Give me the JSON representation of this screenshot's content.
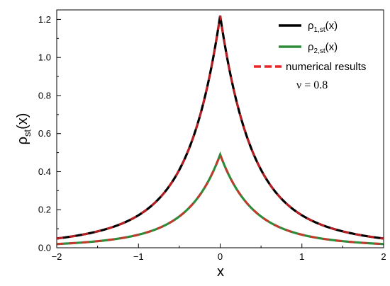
{
  "chart_data": {
    "type": "line",
    "xlabel": "x",
    "ylabel": "ρst(x)",
    "xlim": [
      -2,
      2
    ],
    "ylim": [
      0,
      1.25
    ],
    "x_ticks": [
      -2,
      -1,
      0,
      1,
      2
    ],
    "y_ticks": [
      0.0,
      0.2,
      0.4,
      0.6,
      0.8,
      1.0,
      1.2
    ],
    "x_tick_labels": [
      "−2",
      "−1",
      "0",
      "1",
      "2"
    ],
    "y_tick_labels": [
      "0.0",
      "0.2",
      "0.4",
      "0.6",
      "0.8",
      "1.0",
      "1.2"
    ],
    "grid": false,
    "legend_position": "top-right",
    "annotation": "ν = 0.8",
    "series": [
      {
        "name": "ρ1,st(x)",
        "legend_main": "ρ",
        "legend_sub": "1,st",
        "legend_tail": "(x)",
        "color": "#000000",
        "dashed": false,
        "peak": 1.22,
        "x": [
          -2,
          -1.75,
          -1.5,
          -1.25,
          -1,
          -0.75,
          -0.5,
          -0.25,
          0,
          0.25,
          0.5,
          0.75,
          1,
          1.25,
          1.5,
          1.75,
          2
        ],
        "y": [
          0.01,
          0.02,
          0.03,
          0.045,
          0.08,
          0.14,
          0.27,
          0.53,
          1.22,
          0.53,
          0.27,
          0.14,
          0.08,
          0.045,
          0.03,
          0.02,
          0.01
        ]
      },
      {
        "name": "ρ2,st(x)",
        "legend_main": "ρ",
        "legend_sub": "2,st",
        "legend_tail": "(x)",
        "color": "#2e8b3a",
        "dashed": false,
        "peak": 0.49,
        "x": [
          -2,
          -1.75,
          -1.5,
          -1.25,
          -1,
          -0.75,
          -0.5,
          -0.25,
          0,
          0.25,
          0.5,
          0.75,
          1,
          1.25,
          1.5,
          1.75,
          2
        ],
        "y": [
          0.0,
          0.005,
          0.01,
          0.015,
          0.03,
          0.05,
          0.09,
          0.19,
          0.49,
          0.19,
          0.09,
          0.05,
          0.03,
          0.015,
          0.01,
          0.005,
          0.0
        ]
      },
      {
        "name": "numerical results",
        "color": "#e8262a",
        "dashed": true,
        "overlays": [
          0,
          1
        ]
      }
    ]
  }
}
